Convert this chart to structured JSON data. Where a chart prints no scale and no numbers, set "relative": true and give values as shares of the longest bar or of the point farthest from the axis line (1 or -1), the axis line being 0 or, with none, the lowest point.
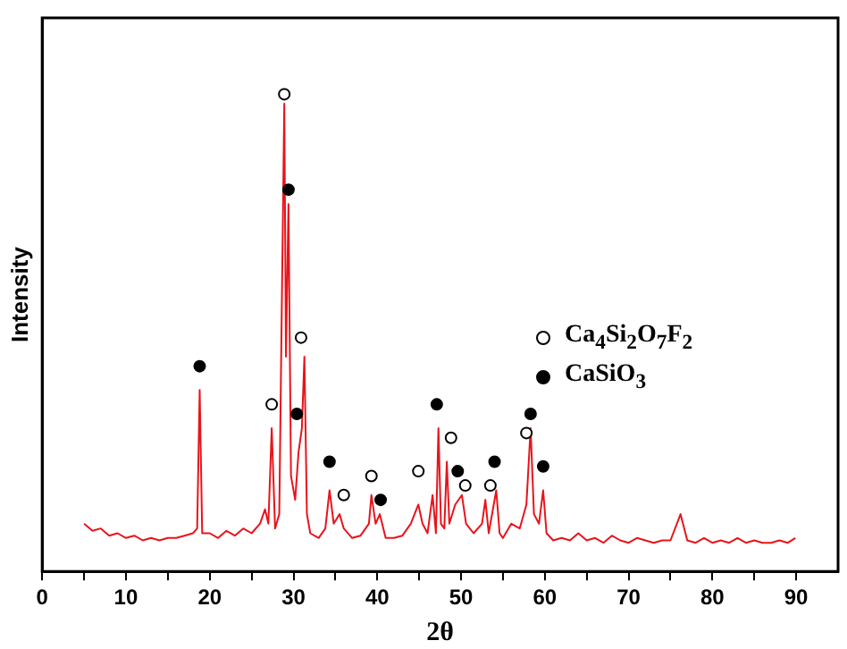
{
  "chart_data": {
    "type": "line",
    "xlabel": "2θ",
    "ylabel": "Intensity",
    "relative": true,
    "xlim": [
      0,
      95
    ],
    "xticks": [
      0,
      {
        "value": 5,
        "label": null
      },
      10,
      {
        "value": 15,
        "label": null
      },
      20,
      {
        "value": 25,
        "label": null
      },
      30,
      {
        "value": 35,
        "label": null
      },
      40,
      {
        "value": 45,
        "label": null
      },
      50,
      {
        "value": 55,
        "label": null
      },
      60,
      {
        "value": 65,
        "label": null
      },
      70,
      {
        "value": 75,
        "label": null
      },
      80,
      {
        "value": 85,
        "label": null
      },
      90
    ],
    "grid": false,
    "legend": "right",
    "series": [
      {
        "color": "#e8141b",
        "marker": "none",
        "x": [
          5,
          6,
          7,
          8,
          9,
          10,
          11,
          12,
          13,
          14,
          15,
          16,
          17,
          18,
          18.5,
          18.8,
          19.1,
          20,
          21,
          22,
          23,
          24,
          25,
          26,
          26.6,
          27,
          27.4,
          27.8,
          28.3,
          28.9,
          29.1,
          29.4,
          29.7,
          30.2,
          30.6,
          31,
          31.3,
          31.6,
          32,
          33,
          33.8,
          34.3,
          34.8,
          35.5,
          36,
          37,
          38,
          39,
          39.3,
          39.8,
          40.3,
          41,
          42,
          43,
          44,
          44.9,
          45.4,
          46,
          46.6,
          47,
          47.3,
          47.6,
          48,
          48.3,
          48.6,
          49.3,
          50.1,
          50.6,
          51.5,
          52.5,
          52.9,
          53.3,
          54.2,
          54.6,
          55,
          56,
          57,
          57.8,
          58.3,
          58.7,
          59.3,
          59.8,
          60.2,
          61,
          62,
          63,
          64,
          65,
          66,
          67,
          68,
          69,
          70,
          71,
          72,
          73,
          74,
          75,
          76.2,
          77,
          78,
          79,
          80,
          81,
          82,
          83,
          84,
          85,
          86,
          87,
          88,
          89,
          89.9
        ],
        "values": [
          0.1,
          0.085,
          0.09,
          0.075,
          0.08,
          0.07,
          0.075,
          0.065,
          0.07,
          0.065,
          0.07,
          0.07,
          0.075,
          0.08,
          0.09,
          0.38,
          0.08,
          0.08,
          0.07,
          0.085,
          0.075,
          0.09,
          0.08,
          0.1,
          0.13,
          0.1,
          0.3,
          0.09,
          0.12,
          0.98,
          0.45,
          0.77,
          0.2,
          0.15,
          0.25,
          0.3,
          0.45,
          0.12,
          0.08,
          0.07,
          0.09,
          0.17,
          0.1,
          0.12,
          0.09,
          0.07,
          0.075,
          0.1,
          0.16,
          0.1,
          0.12,
          0.07,
          0.07,
          0.075,
          0.1,
          0.14,
          0.1,
          0.08,
          0.16,
          0.08,
          0.3,
          0.1,
          0.09,
          0.23,
          0.1,
          0.14,
          0.16,
          0.1,
          0.08,
          0.1,
          0.15,
          0.08,
          0.17,
          0.08,
          0.07,
          0.1,
          0.09,
          0.14,
          0.3,
          0.12,
          0.1,
          0.17,
          0.08,
          0.065,
          0.07,
          0.065,
          0.08,
          0.065,
          0.07,
          0.06,
          0.075,
          0.065,
          0.06,
          0.07,
          0.065,
          0.06,
          0.065,
          0.065,
          0.12,
          0.065,
          0.06,
          0.07,
          0.06,
          0.065,
          0.06,
          0.07,
          0.06,
          0.065,
          0.06,
          0.06,
          0.065,
          0.06,
          0.07
        ]
      },
      {
        "type": "scatter",
        "name": "Ca$_{4}$Si$_{2}$O$_{7}$F$_{2}$",
        "color": "#ffffff",
        "marker": "circle",
        "x": [
          27.4,
          28.9,
          30.9,
          36,
          39.3,
          44.9,
          48.8,
          50.5,
          53.5,
          57.8
        ],
        "values": [
          0.35,
          1,
          0.49,
          0.16,
          0.2,
          0.21,
          0.28,
          0.18,
          0.18,
          0.29
        ]
      },
      {
        "type": "scatter",
        "name": "CaSiO$_{3}$",
        "color": "#000000",
        "marker": "circle",
        "x": [
          18.8,
          29.4,
          30.4,
          34.3,
          40.4,
          47.1,
          49.6,
          54,
          58.3,
          59.8
        ],
        "values": [
          0.43,
          0.8,
          0.33,
          0.23,
          0.15,
          0.35,
          0.21,
          0.23,
          0.33,
          0.22
        ]
      }
    ]
  }
}
